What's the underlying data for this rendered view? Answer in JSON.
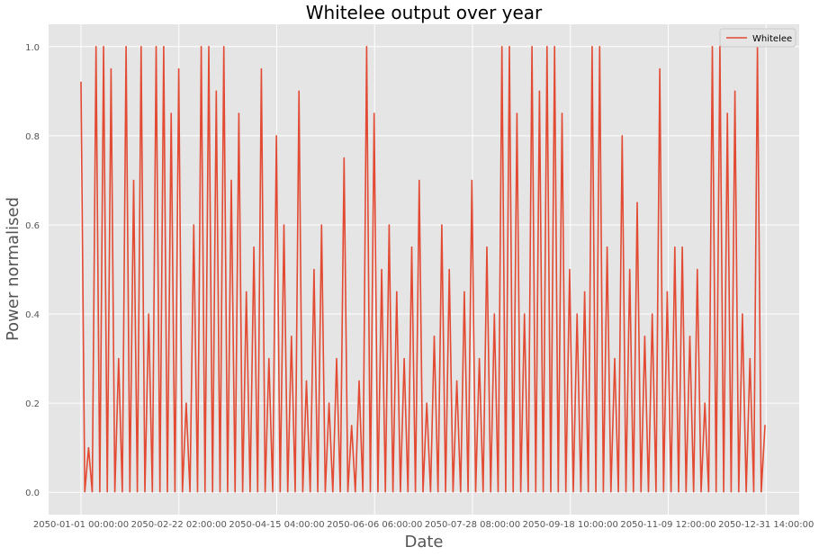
{
  "chart_data": {
    "type": "line",
    "title": "Whitelee output over year",
    "xlabel": "Date",
    "ylabel": "Power normalised",
    "xlim": [
      "2050-01-01 00:00:00",
      "2050-12-31 23:00:00"
    ],
    "ylim": [
      -0.05,
      1.05
    ],
    "grid": true,
    "legend_position": "top-right",
    "x_ticks": [
      "2050-01-01 00:00:00",
      "2050-02-22 02:00:00",
      "2050-04-15 04:00:00",
      "2050-06-06 06:00:00",
      "2050-07-28 08:00:00",
      "2050-09-18 10:00:00",
      "2050-11-09 12:00:00",
      "2050-12-31 14:00:00"
    ],
    "y_ticks": [
      "0.0",
      "0.2",
      "0.4",
      "0.6",
      "0.8",
      "1.0"
    ],
    "series": [
      {
        "name": "Whitelee",
        "color": "#E24A33",
        "x": [
          "2050-01-01",
          "2050-01-05",
          "2050-01-09",
          "2050-01-13",
          "2050-01-17",
          "2050-01-21",
          "2050-01-25",
          "2050-01-29",
          "2050-02-02",
          "2050-02-06",
          "2050-02-10",
          "2050-02-14",
          "2050-02-18",
          "2050-02-22",
          "2050-02-26",
          "2050-03-02",
          "2050-03-06",
          "2050-03-10",
          "2050-03-14",
          "2050-03-18",
          "2050-03-22",
          "2050-03-26",
          "2050-03-30",
          "2050-04-03",
          "2050-04-07",
          "2050-04-11",
          "2050-04-15",
          "2050-04-19",
          "2050-04-23",
          "2050-04-27",
          "2050-05-01",
          "2050-05-05",
          "2050-05-09",
          "2050-05-13",
          "2050-05-17",
          "2050-05-21",
          "2050-05-25",
          "2050-05-29",
          "2050-06-02",
          "2050-06-06",
          "2050-06-10",
          "2050-06-14",
          "2050-06-18",
          "2050-06-22",
          "2050-06-26",
          "2050-06-30",
          "2050-07-04",
          "2050-07-08",
          "2050-07-12",
          "2050-07-16",
          "2050-07-20",
          "2050-07-24",
          "2050-07-28",
          "2050-08-01",
          "2050-08-05",
          "2050-08-09",
          "2050-08-13",
          "2050-08-17",
          "2050-08-21",
          "2050-08-25",
          "2050-08-29",
          "2050-09-02",
          "2050-09-06",
          "2050-09-10",
          "2050-09-14",
          "2050-09-18",
          "2050-09-22",
          "2050-09-26",
          "2050-09-30",
          "2050-10-04",
          "2050-10-08",
          "2050-10-12",
          "2050-10-16",
          "2050-10-20",
          "2050-10-24",
          "2050-10-28",
          "2050-11-01",
          "2050-11-05",
          "2050-11-09",
          "2050-11-13",
          "2050-11-17",
          "2050-11-21",
          "2050-11-25",
          "2050-11-29",
          "2050-12-03",
          "2050-12-07",
          "2050-12-11",
          "2050-12-15",
          "2050-12-19",
          "2050-12-23",
          "2050-12-27",
          "2050-12-31"
        ],
        "values": [
          0.92,
          0.1,
          1.0,
          1.0,
          0.95,
          0.3,
          1.0,
          0.7,
          1.0,
          0.4,
          1.0,
          1.0,
          0.85,
          0.95,
          0.2,
          0.6,
          1.0,
          1.0,
          0.9,
          1.0,
          0.7,
          0.85,
          0.45,
          0.55,
          0.95,
          0.3,
          0.8,
          0.6,
          0.35,
          0.9,
          0.25,
          0.5,
          0.6,
          0.2,
          0.3,
          0.75,
          0.15,
          0.25,
          1.0,
          0.85,
          0.5,
          0.6,
          0.45,
          0.3,
          0.55,
          0.7,
          0.2,
          0.35,
          0.6,
          0.5,
          0.25,
          0.45,
          0.7,
          0.3,
          0.55,
          0.4,
          1.0,
          1.0,
          0.85,
          0.4,
          1.0,
          0.9,
          1.0,
          1.0,
          0.85,
          0.5,
          0.4,
          0.45,
          1.0,
          1.0,
          0.55,
          0.3,
          0.8,
          0.5,
          0.65,
          0.35,
          0.4,
          0.95,
          0.45,
          0.55,
          0.55,
          0.35,
          0.5,
          0.2,
          1.0,
          1.0,
          0.85,
          0.9,
          0.4,
          0.3,
          1.0,
          0.15
        ]
      }
    ]
  }
}
